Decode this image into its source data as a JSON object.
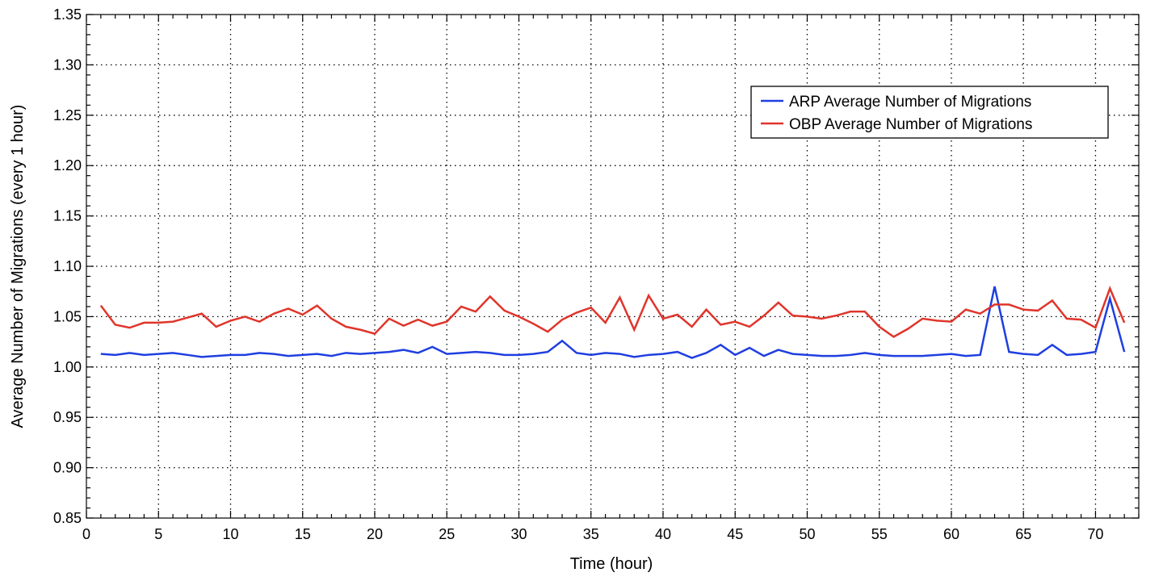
{
  "chart_data": {
    "type": "line",
    "title": "",
    "xlabel": "Time (hour)",
    "ylabel": "Average Number of Migrations (every 1 hour)",
    "xlim": [
      0,
      73
    ],
    "ylim": [
      0.85,
      1.35
    ],
    "xticks": [
      0,
      5,
      10,
      15,
      20,
      25,
      30,
      35,
      40,
      45,
      50,
      55,
      60,
      65,
      70
    ],
    "xtick_labels": [
      "0",
      "5",
      "10",
      "15",
      "20",
      "25",
      "30",
      "35",
      "40",
      "45",
      "50",
      "55",
      "60",
      "65",
      "70"
    ],
    "yticks": [
      0.85,
      0.9,
      0.95,
      1.0,
      1.05,
      1.1,
      1.15,
      1.2,
      1.25,
      1.3,
      1.35
    ],
    "ytick_labels": [
      "0.85",
      "0.90",
      "0.95",
      "1.00",
      "1.05",
      "1.10",
      "1.15",
      "1.20",
      "1.25",
      "1.30",
      "1.35"
    ],
    "grid": true,
    "legend_position": "top-right",
    "x": [
      1,
      2,
      3,
      4,
      5,
      6,
      7,
      8,
      9,
      10,
      11,
      12,
      13,
      14,
      15,
      16,
      17,
      18,
      19,
      20,
      21,
      22,
      23,
      24,
      25,
      26,
      27,
      28,
      29,
      30,
      31,
      32,
      33,
      34,
      35,
      36,
      37,
      38,
      39,
      40,
      41,
      42,
      43,
      44,
      45,
      46,
      47,
      48,
      49,
      50,
      51,
      52,
      53,
      54,
      55,
      56,
      57,
      58,
      59,
      60,
      61,
      62,
      63,
      64,
      65,
      66,
      67,
      68,
      69,
      70,
      71,
      72
    ],
    "series": [
      {
        "name": "ARP Average Number of Migrations",
        "color": "#1f3fe0",
        "values": [
          1.013,
          1.012,
          1.014,
          1.012,
          1.013,
          1.014,
          1.012,
          1.01,
          1.011,
          1.012,
          1.012,
          1.014,
          1.013,
          1.011,
          1.012,
          1.013,
          1.011,
          1.014,
          1.013,
          1.014,
          1.015,
          1.017,
          1.014,
          1.02,
          1.013,
          1.014,
          1.015,
          1.014,
          1.012,
          1.012,
          1.013,
          1.015,
          1.026,
          1.014,
          1.012,
          1.014,
          1.013,
          1.01,
          1.012,
          1.013,
          1.015,
          1.009,
          1.014,
          1.022,
          1.012,
          1.019,
          1.011,
          1.017,
          1.013,
          1.012,
          1.011,
          1.011,
          1.012,
          1.014,
          1.012,
          1.011,
          1.011,
          1.011,
          1.012,
          1.013,
          1.011,
          1.012,
          1.08,
          1.015,
          1.013,
          1.012,
          1.022,
          1.012,
          1.013,
          1.015,
          1.068,
          1.015
        ]
      },
      {
        "name": "OBP Average Number of Migrations",
        "color": "#e0352b",
        "values": [
          1.061,
          1.042,
          1.039,
          1.044,
          1.044,
          1.045,
          1.049,
          1.053,
          1.04,
          1.046,
          1.05,
          1.045,
          1.053,
          1.058,
          1.052,
          1.061,
          1.048,
          1.04,
          1.037,
          1.033,
          1.048,
          1.041,
          1.047,
          1.041,
          1.045,
          1.06,
          1.055,
          1.07,
          1.056,
          1.05,
          1.043,
          1.035,
          1.047,
          1.054,
          1.059,
          1.044,
          1.069,
          1.037,
          1.071,
          1.048,
          1.052,
          1.04,
          1.057,
          1.042,
          1.045,
          1.04,
          1.051,
          1.064,
          1.051,
          1.05,
          1.048,
          1.051,
          1.055,
          1.055,
          1.04,
          1.03,
          1.038,
          1.048,
          1.046,
          1.045,
          1.057,
          1.053,
          1.062,
          1.062,
          1.057,
          1.056,
          1.066,
          1.048,
          1.047,
          1.039,
          1.078,
          1.044
        ]
      }
    ]
  }
}
